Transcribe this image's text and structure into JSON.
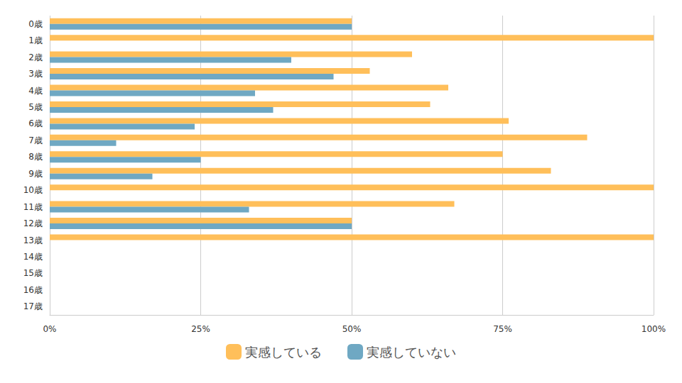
{
  "chart_data": {
    "type": "bar",
    "orientation": "horizontal",
    "categories": [
      "0歳",
      "1歳",
      "2歳",
      "3歳",
      "4歳",
      "5歳",
      "6歳",
      "7歳",
      "8歳",
      "9歳",
      "10歳",
      "11歳",
      "12歳",
      "13歳",
      "14歳",
      "15歳",
      "16歳",
      "17歳"
    ],
    "series": [
      {
        "name": "実感している",
        "color": "#ffbf5a",
        "values": [
          50,
          100,
          60,
          53,
          66,
          63,
          76,
          89,
          75,
          83,
          100,
          67,
          50,
          100,
          null,
          null,
          null,
          null
        ]
      },
      {
        "name": "実感していない",
        "color": "#6fa8c3",
        "values": [
          50,
          0,
          40,
          47,
          34,
          37,
          24,
          11,
          25,
          17,
          0,
          33,
          50,
          0,
          null,
          null,
          null,
          null
        ]
      }
    ],
    "xlim": [
      0,
      100
    ],
    "xticks": [
      {
        "value": 0,
        "label": "0%"
      },
      {
        "value": 25,
        "label": "25%"
      },
      {
        "value": 50,
        "label": "50%"
      },
      {
        "value": 75,
        "label": "75%"
      },
      {
        "value": 100,
        "label": "100%"
      }
    ],
    "grid": true,
    "legend": "bottom"
  }
}
